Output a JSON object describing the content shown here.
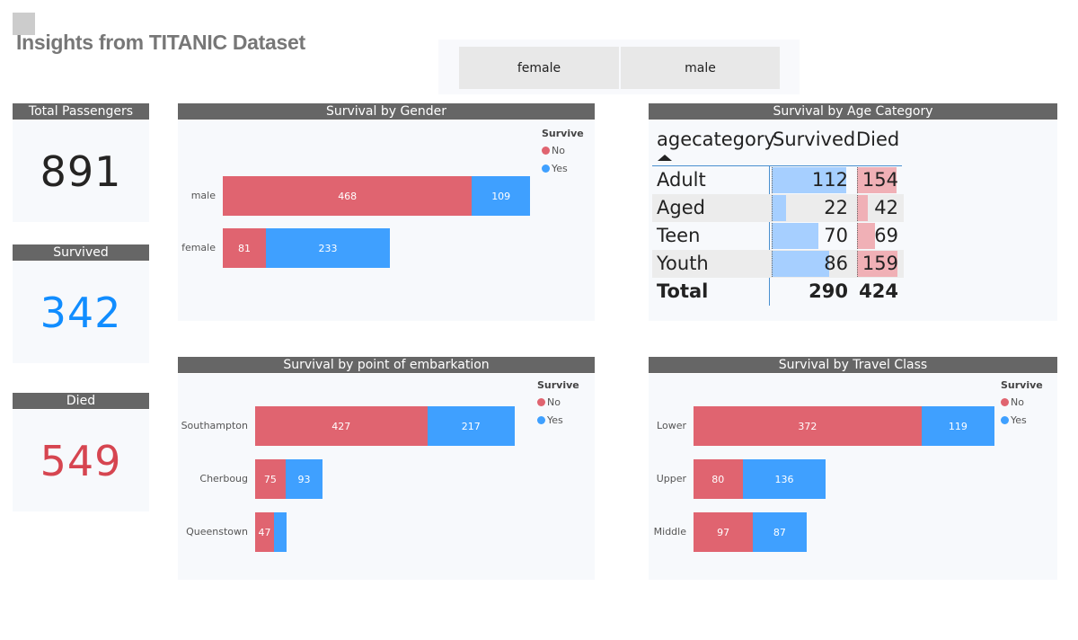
{
  "title": "Insights from TITANIC Dataset",
  "slicer": {
    "options": [
      "female",
      "male"
    ]
  },
  "kpis": [
    {
      "label": "Total Passengers",
      "value": "891",
      "color": "#252423"
    },
    {
      "label": "Survived",
      "value": "342",
      "color": "#118DFF"
    },
    {
      "label": "Died",
      "value": "549",
      "color": "#D64550"
    }
  ],
  "colors": {
    "No": "#E06470",
    "Yes": "#3FA0FF",
    "header": "#666666"
  },
  "chart_data": [
    {
      "type": "bar",
      "orientation": "horizontal",
      "stacked": true,
      "title": "Survival by Gender",
      "legend_title": "Survive",
      "legend_position": "top-right",
      "categories": [
        "male",
        "female"
      ],
      "series": [
        {
          "name": "No",
          "values": [
            468,
            81
          ]
        },
        {
          "name": "Yes",
          "values": [
            109,
            233
          ]
        }
      ]
    },
    {
      "type": "table",
      "title": "Survival by Age Category",
      "columns": [
        "agecategory",
        "Survived",
        "Died"
      ],
      "rows": [
        [
          "Adult",
          112,
          154
        ],
        [
          "Aged",
          22,
          42
        ],
        [
          "Teen",
          70,
          69
        ],
        [
          "Youth",
          86,
          159
        ]
      ],
      "total": {
        "label": "Total",
        "Survived": 290,
        "Died": 424
      },
      "sort": "agecategory ascending"
    },
    {
      "type": "bar",
      "orientation": "horizontal",
      "stacked": true,
      "title": "Survival by point of embarkation",
      "legend_title": "Survive",
      "legend_position": "top-right",
      "categories": [
        "Southampton",
        "Cherboug",
        "Queenstown"
      ],
      "series": [
        {
          "name": "No",
          "values": [
            427,
            75,
            47
          ]
        },
        {
          "name": "Yes",
          "values": [
            217,
            93,
            30
          ]
        }
      ],
      "hidden_labels": {
        "Yes": [
          false,
          false,
          true
        ]
      }
    },
    {
      "type": "bar",
      "orientation": "horizontal",
      "stacked": true,
      "title": "Survival by Travel Class",
      "legend_title": "Survive",
      "legend_position": "top-right",
      "categories": [
        "Lower",
        "Upper",
        "Middle"
      ],
      "series": [
        {
          "name": "No",
          "values": [
            372,
            80,
            97
          ]
        },
        {
          "name": "Yes",
          "values": [
            119,
            136,
            87
          ]
        }
      ]
    }
  ]
}
